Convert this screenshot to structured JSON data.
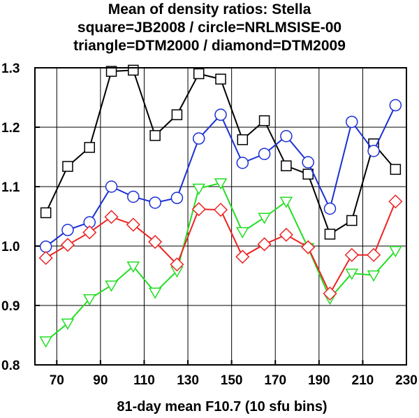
{
  "chart_data": {
    "type": "line",
    "title": [
      "Mean of density ratios: Stella",
      "square=JB2008 / circle=NRLMSISE-00",
      "triangle=DTM2000 / diamond=DTM2009"
    ],
    "xlabel": "81-day mean F10.7 (10 sfu bins)",
    "ylabel": "",
    "xlim": [
      60,
      230
    ],
    "ylim": [
      0.8,
      1.3
    ],
    "xticks": [
      70,
      90,
      110,
      130,
      150,
      170,
      190,
      210,
      230
    ],
    "yticks": [
      0.8,
      0.9,
      1.0,
      1.1,
      1.2,
      1.3
    ],
    "xtick_labels": [
      "70",
      "90",
      "110",
      "130",
      "150",
      "170",
      "190",
      "210",
      "230"
    ],
    "ytick_labels": [
      "0.8",
      "0.9",
      "1.0",
      "1.1",
      "1.2",
      "1.3"
    ],
    "grid": true,
    "x": [
      65,
      75,
      85,
      95,
      105,
      115,
      125,
      135,
      145,
      155,
      165,
      175,
      185,
      195,
      205,
      215,
      225
    ],
    "series": [
      {
        "marker": "square",
        "color": "#000000",
        "values": [
          1.056,
          1.134,
          1.166,
          1.294,
          1.296,
          1.186,
          1.221,
          1.29,
          1.281,
          1.179,
          1.211,
          1.135,
          1.121,
          1.02,
          1.043,
          1.172,
          1.129
        ]
      },
      {
        "marker": "circle",
        "color": "#1a2fd6",
        "values": [
          0.999,
          1.027,
          1.04,
          1.1,
          1.083,
          1.073,
          1.081,
          1.181,
          1.221,
          1.14,
          1.155,
          1.185,
          1.141,
          1.063,
          1.209,
          1.16,
          1.237
        ]
      },
      {
        "marker": "triangle",
        "color": "#22dd22",
        "values": [
          0.84,
          0.87,
          0.911,
          0.934,
          0.966,
          0.922,
          0.958,
          1.097,
          1.106,
          1.024,
          1.048,
          1.075,
          0.997,
          0.912,
          0.954,
          0.951,
          0.992
        ]
      },
      {
        "marker": "diamond",
        "color": "#ee2222",
        "values": [
          0.98,
          1.002,
          1.023,
          1.049,
          1.036,
          1.007,
          0.969,
          1.062,
          1.061,
          0.982,
          1.003,
          1.019,
          0.998,
          0.92,
          0.985,
          0.985,
          1.075
        ]
      }
    ]
  }
}
